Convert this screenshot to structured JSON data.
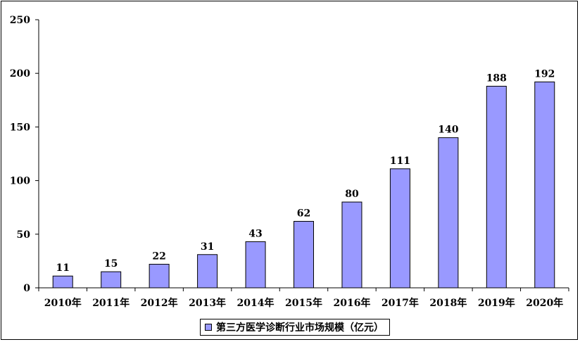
{
  "chart_data": {
    "type": "bar",
    "categories": [
      "2010年",
      "2011年",
      "2012年",
      "2013年",
      "2014年",
      "2015年",
      "2016年",
      "2017年",
      "2018年",
      "2019年",
      "2020年"
    ],
    "series": [
      {
        "name": "第三方医学诊断行业市场规模（亿元）",
        "values": [
          11,
          15,
          22,
          31,
          43,
          62,
          80,
          111,
          140,
          188,
          192
        ]
      }
    ],
    "y_ticks": [
      0,
      50,
      100,
      150,
      200,
      250
    ],
    "ylim": [
      0,
      250
    ],
    "grid": false,
    "legend_position": "bottom",
    "data_labels": true,
    "colors": {
      "bar_fill": "#9999FF",
      "bar_stroke": "#000000",
      "axis": "#000000"
    }
  },
  "legend": {
    "label": "第三方医学诊断行业市场规模（亿元）"
  }
}
